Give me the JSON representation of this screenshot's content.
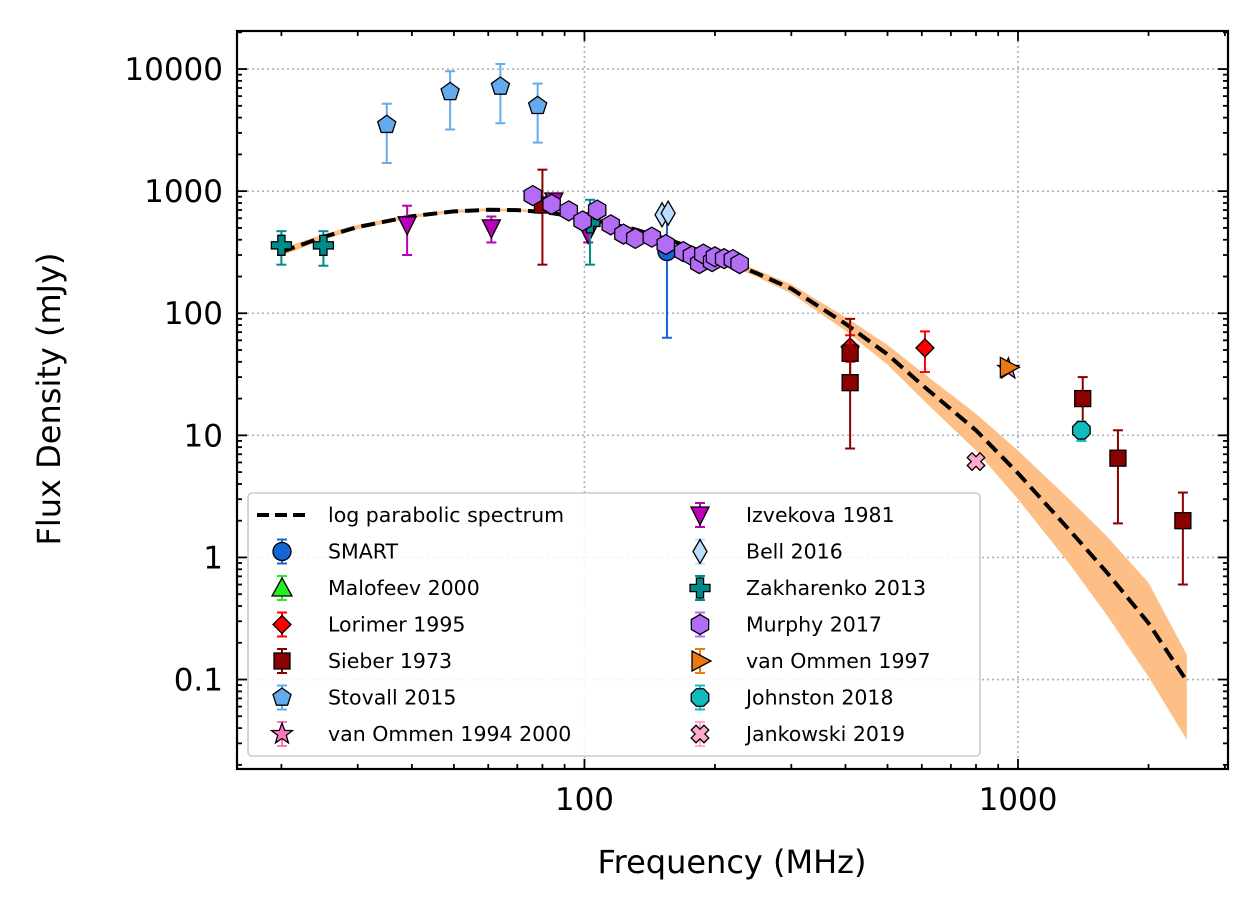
{
  "chart_data": {
    "type": "scatter",
    "title": "",
    "xlabel": "Frequency (MHz)",
    "ylabel": "Flux Density (mJy)",
    "xscale": "log",
    "yscale": "log",
    "xlim": [
      15.8,
      3050
    ],
    "ylim": [
      0.0185,
      20500
    ],
    "x_ticks": [
      100,
      1000
    ],
    "x_tick_labels": [
      "100",
      "1000"
    ],
    "y_ticks": [
      0.1,
      1,
      10,
      100,
      1000,
      10000
    ],
    "y_tick_labels": [
      "0.1",
      "1",
      "10",
      "100",
      "1000",
      "10000"
    ],
    "grid": true,
    "legend_position": "lower-left",
    "model": {
      "name": "log parabolic spectrum",
      "color": "#000000",
      "band_color": "#fdbf86",
      "x": [
        20,
        25,
        30,
        40,
        50,
        60,
        70,
        80,
        100,
        130,
        160,
        200,
        250,
        300,
        400,
        500,
        600,
        800,
        1000,
        1300,
        1600,
        2000,
        2450
      ],
      "y": [
        318,
        422,
        509,
        624,
        683,
        704,
        699,
        676,
        605,
        490,
        390,
        293,
        212,
        159,
        82,
        46,
        26,
        11,
        4.9,
        1.75,
        0.76,
        0.29,
        0.097
      ],
      "y_low": [
        295,
        400,
        487,
        603,
        663,
        686,
        682,
        660,
        588,
        472,
        372,
        277,
        198,
        145,
        72,
        38,
        20,
        7.5,
        3.0,
        0.93,
        0.34,
        0.105,
        0.032
      ],
      "y_high": [
        341,
        444,
        531,
        645,
        703,
        722,
        716,
        692,
        622,
        508,
        408,
        309,
        226,
        173,
        93,
        55,
        33,
        15,
        7.5,
        3.1,
        1.5,
        0.62,
        0.16
      ]
    },
    "series": [
      {
        "name": "SMART",
        "marker": "circle",
        "color": "#1565d4",
        "points": [
          {
            "x": 155,
            "y": 320,
            "lo": 63,
            "hi": 600
          }
        ]
      },
      {
        "name": "Malofeev 2000",
        "marker": "triangle-up",
        "color": "#22ee22",
        "points": []
      },
      {
        "name": "Lorimer 1995",
        "marker": "diamond",
        "color": "#ff0000",
        "points": [
          {
            "x": 410,
            "y": 53,
            "lo": 40,
            "hi": 66
          },
          {
            "x": 610,
            "y": 52,
            "lo": 33,
            "hi": 71
          }
        ]
      },
      {
        "name": "Sieber 1973",
        "marker": "square",
        "color": "#8b0000",
        "points": [
          {
            "x": 80,
            "y": 770,
            "lo": 250,
            "hi": 1500
          },
          {
            "x": 410,
            "y": 47,
            "lo": 28,
            "hi": 90
          },
          {
            "x": 410,
            "y": 27,
            "lo": 7.8,
            "hi": 55
          },
          {
            "x": 1410,
            "y": 20,
            "lo": 11,
            "hi": 30
          },
          {
            "x": 1700,
            "y": 6.5,
            "lo": 1.9,
            "hi": 11
          },
          {
            "x": 2400,
            "y": 2.0,
            "lo": 0.6,
            "hi": 3.4
          }
        ]
      },
      {
        "name": "Stovall 2015",
        "marker": "pentagon",
        "color": "#66aaee",
        "points": [
          {
            "x": 35,
            "y": 3500,
            "lo": 1700,
            "hi": 5200
          },
          {
            "x": 49,
            "y": 6500,
            "lo": 3200,
            "hi": 9600
          },
          {
            "x": 64,
            "y": 7200,
            "lo": 3600,
            "hi": 11000
          },
          {
            "x": 78,
            "y": 5000,
            "lo": 2500,
            "hi": 7600
          }
        ]
      },
      {
        "name": "van Ommen 1994 2000",
        "marker": "star",
        "color": "#ff77bb",
        "points": [
          {
            "x": 950,
            "y": 35,
            "lo": 34,
            "hi": 36
          }
        ]
      },
      {
        "name": "Izvekova 1981",
        "marker": "triangle-down",
        "color": "#bb00bb",
        "points": [
          {
            "x": 39,
            "y": 530,
            "lo": 300,
            "hi": 760
          },
          {
            "x": 61,
            "y": 500,
            "lo": 380,
            "hi": 620
          },
          {
            "x": 85,
            "y": 830,
            "lo": 830,
            "hi": 830
          },
          {
            "x": 102,
            "y": 450,
            "lo": 380,
            "hi": 520
          }
        ]
      },
      {
        "name": "Bell 2016",
        "marker": "thin-diamond",
        "color": "#bbddff",
        "points": [
          {
            "x": 151,
            "y": 640,
            "lo": 640,
            "hi": 640
          },
          {
            "x": 156,
            "y": 660,
            "lo": 660,
            "hi": 660
          }
        ]
      },
      {
        "name": "Zakharenko 2013",
        "marker": "plus",
        "color": "#008b8b",
        "points": [
          {
            "x": 20,
            "y": 360,
            "lo": 250,
            "hi": 470
          },
          {
            "x": 25,
            "y": 360,
            "lo": 245,
            "hi": 470
          },
          {
            "x": 103,
            "y": 550,
            "lo": 250,
            "hi": 850
          }
        ]
      },
      {
        "name": "Murphy 2017",
        "marker": "hexagon",
        "color": "#b36cf5",
        "points": [
          {
            "x": 76,
            "y": 920
          },
          {
            "x": 84,
            "y": 780
          },
          {
            "x": 92,
            "y": 690
          },
          {
            "x": 99,
            "y": 570
          },
          {
            "x": 107,
            "y": 700
          },
          {
            "x": 115,
            "y": 530
          },
          {
            "x": 123,
            "y": 445
          },
          {
            "x": 131,
            "y": 410
          },
          {
            "x": 143,
            "y": 420
          },
          {
            "x": 154,
            "y": 365
          },
          {
            "x": 169,
            "y": 320
          },
          {
            "x": 177,
            "y": 295
          },
          {
            "x": 184,
            "y": 255
          },
          {
            "x": 188,
            "y": 305
          },
          {
            "x": 197,
            "y": 265
          },
          {
            "x": 200,
            "y": 290
          },
          {
            "x": 210,
            "y": 280
          },
          {
            "x": 220,
            "y": 275
          },
          {
            "x": 228,
            "y": 255
          }
        ]
      },
      {
        "name": "van Ommen 1997",
        "marker": "triangle-right",
        "color": "#ee7711",
        "points": [
          {
            "x": 950,
            "y": 36,
            "lo": 34,
            "hi": 38
          }
        ]
      },
      {
        "name": "Johnston 2018",
        "marker": "octagon",
        "color": "#11bbbb",
        "points": [
          {
            "x": 1400,
            "y": 11,
            "lo": 9,
            "hi": 13
          }
        ]
      },
      {
        "name": "Jankowski 2019",
        "marker": "x-filled",
        "color": "#ffaacc",
        "points": [
          {
            "x": 800,
            "y": 6.1,
            "lo": 5.8,
            "hi": 6.4
          }
        ]
      }
    ]
  }
}
